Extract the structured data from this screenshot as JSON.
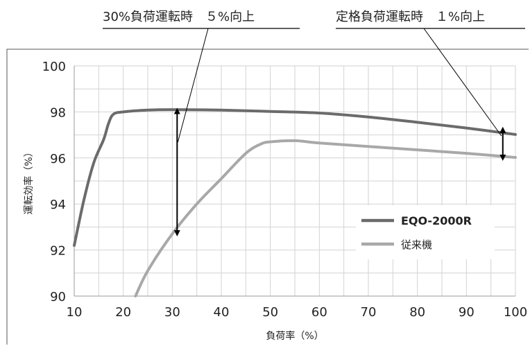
{
  "chart_data": {
    "type": "line",
    "xlabel": "負荷率（%）",
    "ylabel": "運転効率（%）",
    "xlim": [
      10,
      100
    ],
    "ylim": [
      90,
      100
    ],
    "x_ticks": [
      "10",
      "20",
      "30",
      "40",
      "50",
      "60",
      "70",
      "80",
      "90",
      "100"
    ],
    "y_ticks": [
      "90",
      "92",
      "94",
      "96",
      "98",
      "100"
    ],
    "grid": true,
    "legend_position": "lower-right",
    "series": [
      {
        "name": "EQO-2000R",
        "color": "#6b6b6b",
        "x": [
          10,
          12,
          14,
          16,
          17,
          18,
          20,
          25,
          30,
          40,
          50,
          60,
          70,
          80,
          90,
          100
        ],
        "y": [
          92.2,
          94.2,
          95.8,
          96.8,
          97.5,
          97.9,
          98.0,
          98.08,
          98.1,
          98.08,
          98.02,
          97.95,
          97.78,
          97.55,
          97.3,
          97.02
        ]
      },
      {
        "name": "従来機",
        "color": "#a8a8a8",
        "x": [
          22.5,
          25,
          30,
          35,
          40,
          45,
          48,
          50,
          55,
          60,
          70,
          80,
          90,
          100
        ],
        "y": [
          90.0,
          91.1,
          92.7,
          94.0,
          95.1,
          96.2,
          96.6,
          96.7,
          96.75,
          96.65,
          96.5,
          96.35,
          96.2,
          96.02
        ]
      }
    ],
    "annotations": [
      {
        "text": "30%負荷運転時　５%向上",
        "x": 30,
        "y_from": 92.7,
        "y_to": 98.1
      },
      {
        "text": "定格負荷運転時　１%向上",
        "x": 97,
        "y_from": 96.1,
        "y_to": 97.1
      }
    ]
  }
}
